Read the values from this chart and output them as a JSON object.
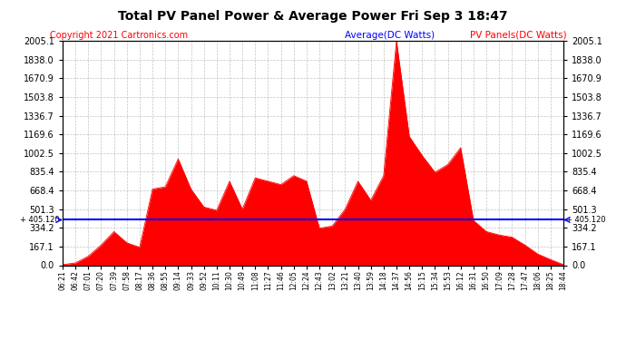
{
  "title": "Total PV Panel Power & Average Power Fri Sep 3 18:47",
  "copyright": "Copyright 2021 Cartronics.com",
  "legend_avg": "Average(DC Watts)",
  "legend_pv": "PV Panels(DC Watts)",
  "avg_value": 405.12,
  "ymax": 2005.1,
  "ymin": 0.0,
  "yticks": [
    0.0,
    167.1,
    334.2,
    501.3,
    668.4,
    835.4,
    1002.5,
    1169.6,
    1336.7,
    1503.8,
    1670.9,
    1838.0,
    2005.1
  ],
  "avg_label": "405.120",
  "bg_color": "#ffffff",
  "grid_color": "#aaaaaa",
  "fill_color": "#ff0000",
  "line_color": "#ff0000",
  "avg_line_color": "#0000ff",
  "title_color": "#000000",
  "copyright_color": "#ff0000",
  "legend_avg_color": "#0000ff",
  "legend_pv_color": "#ff0000",
  "spike_color": "#ff0000",
  "xtick_labels": [
    "06:21",
    "06:42",
    "07:01",
    "07:20",
    "07:39",
    "07:58",
    "08:17",
    "08:36",
    "08:55",
    "09:14",
    "09:33",
    "09:52",
    "10:11",
    "10:30",
    "10:49",
    "11:08",
    "11:27",
    "11:46",
    "12:05",
    "12:24",
    "12:43",
    "13:02",
    "13:21",
    "13:40",
    "13:59",
    "14:18",
    "14:37",
    "14:56",
    "15:15",
    "15:34",
    "15:53",
    "16:12",
    "16:31",
    "16:50",
    "17:09",
    "17:28",
    "17:47",
    "18:06",
    "18:25",
    "18:44"
  ],
  "pv_data": [
    5,
    20,
    80,
    180,
    300,
    200,
    160,
    680,
    700,
    950,
    680,
    520,
    490,
    750,
    500,
    780,
    750,
    720,
    800,
    750,
    330,
    350,
    500,
    750,
    580,
    800,
    2005,
    1150,
    980,
    830,
    900,
    1050,
    400,
    300,
    270,
    250,
    180,
    100,
    50,
    5
  ]
}
